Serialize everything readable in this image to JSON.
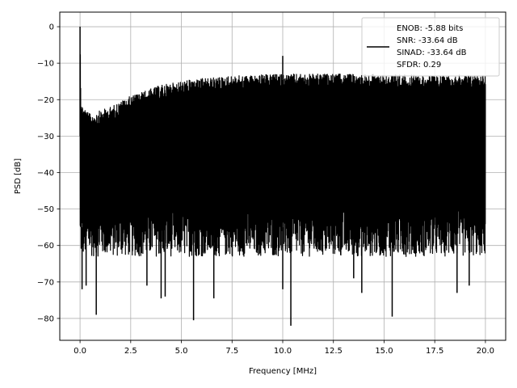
{
  "chart_data": {
    "type": "line",
    "xlabel": "Frequency [MHz]",
    "ylabel": "PSD [dB]",
    "xlim": [
      -1.0,
      21.0
    ],
    "ylim": [
      -86,
      4
    ],
    "grid": true,
    "x_ticks": [
      0.0,
      2.5,
      5.0,
      7.5,
      10.0,
      12.5,
      15.0,
      17.5,
      20.0
    ],
    "x_tick_labels": [
      "0.0",
      "2.5",
      "5.0",
      "7.5",
      "10.0",
      "12.5",
      "15.0",
      "17.5",
      "20.0"
    ],
    "y_ticks": [
      0,
      -10,
      -20,
      -30,
      -40,
      -50,
      -60,
      -70,
      -80
    ],
    "y_tick_labels": [
      "0",
      "−10",
      "−20",
      "−30",
      "−40",
      "−50",
      "−60",
      "−70",
      "−80"
    ],
    "series_color": "#000000",
    "legend_position": "upper right",
    "legend_lines": [
      "ENOB: -5.88 bits",
      "SNR: -33.64 dB",
      "SINAD: -33.64 dB",
      "SFDR: 0.29"
    ],
    "upper_envelope": [
      [
        0.0,
        0
      ],
      [
        0.05,
        -21
      ],
      [
        0.5,
        -24
      ],
      [
        1.5,
        -22
      ],
      [
        2.5,
        -19
      ],
      [
        4.0,
        -16
      ],
      [
        5.5,
        -14.5
      ],
      [
        7.5,
        -13.5
      ],
      [
        10.0,
        -13
      ],
      [
        12.5,
        -13
      ],
      [
        15.0,
        -13
      ],
      [
        17.5,
        -13.5
      ],
      [
        20.0,
        -13
      ]
    ],
    "noise_floor_band": [
      -63,
      -50
    ],
    "peaks": [
      {
        "x": 0.0,
        "y": 0
      },
      {
        "x": 10.0,
        "y": -8
      }
    ],
    "dips": [
      {
        "x": 0.1,
        "y": -72
      },
      {
        "x": 0.3,
        "y": -71
      },
      {
        "x": 0.8,
        "y": -79
      },
      {
        "x": 3.3,
        "y": -71
      },
      {
        "x": 4.0,
        "y": -74.5
      },
      {
        "x": 4.2,
        "y": -74
      },
      {
        "x": 5.6,
        "y": -80.5
      },
      {
        "x": 6.6,
        "y": -74.5
      },
      {
        "x": 10.0,
        "y": -72
      },
      {
        "x": 10.4,
        "y": -82
      },
      {
        "x": 13.5,
        "y": -69
      },
      {
        "x": 13.9,
        "y": -73
      },
      {
        "x": 15.4,
        "y": -79.5
      },
      {
        "x": 18.6,
        "y": -73
      },
      {
        "x": 19.2,
        "y": -71
      }
    ]
  }
}
